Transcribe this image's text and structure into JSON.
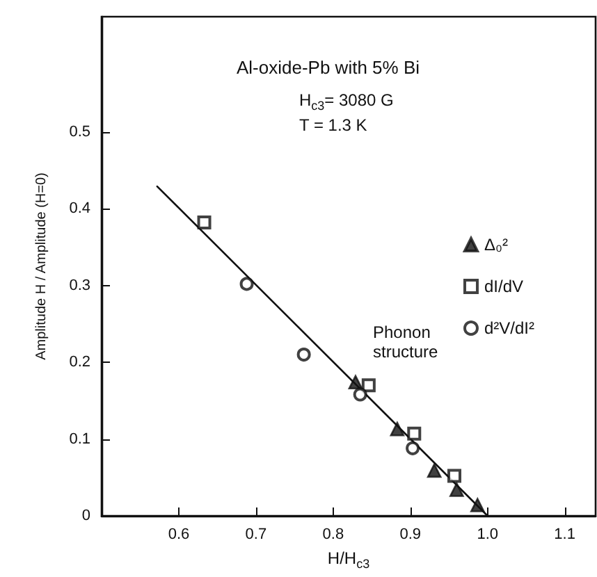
{
  "chart_data": {
    "type": "scatter",
    "title": "Al-oxide-Pb with 5% Bi",
    "annotations": [
      "H$_{c3}$= 3080 G",
      "T = 1.3 K"
    ],
    "xlabel": "H/H$_{c3}$",
    "ylabel": "Amplitude H / Amplitude (H=0)",
    "legend_title": "Phonon structure",
    "xlim": [
      0.5,
      1.14
    ],
    "ylim": [
      0,
      0.65
    ],
    "xticks": [
      0.6,
      0.7,
      0.8,
      0.9,
      {
        "value": 1,
        "label": "1.0"
      },
      1.1
    ],
    "yticks": [
      0,
      0.1,
      0.2,
      0.3,
      0.4,
      0.5
    ],
    "grid": false,
    "legend": "right",
    "series": [
      {
        "name": "Δ₀²",
        "color": "#111111",
        "marker": "triangle",
        "x": [
          0.829,
          0.883,
          0.931,
          0.96,
          0.987
        ],
        "values": [
          0.174,
          0.113,
          0.059,
          0.034,
          0.014
        ]
      },
      {
        "name": "dI/dV",
        "color": "#111111",
        "marker": "square",
        "x": [
          0.633,
          0.846,
          0.905,
          0.957
        ],
        "values": [
          0.382,
          0.17,
          0.107,
          0.052
        ]
      },
      {
        "name": "d²V/dI²",
        "color": "#111111",
        "marker": "circle",
        "x": [
          0.688,
          0.762,
          0.835,
          0.903
        ],
        "values": [
          0.302,
          0.21,
          0.158,
          0.088
        ]
      },
      {
        "type": "line",
        "color": "#111111",
        "marker": "none",
        "line_style": "solid",
        "x": [
          0.572,
          1.0
        ],
        "values": [
          0.429,
          0
        ]
      }
    ]
  }
}
